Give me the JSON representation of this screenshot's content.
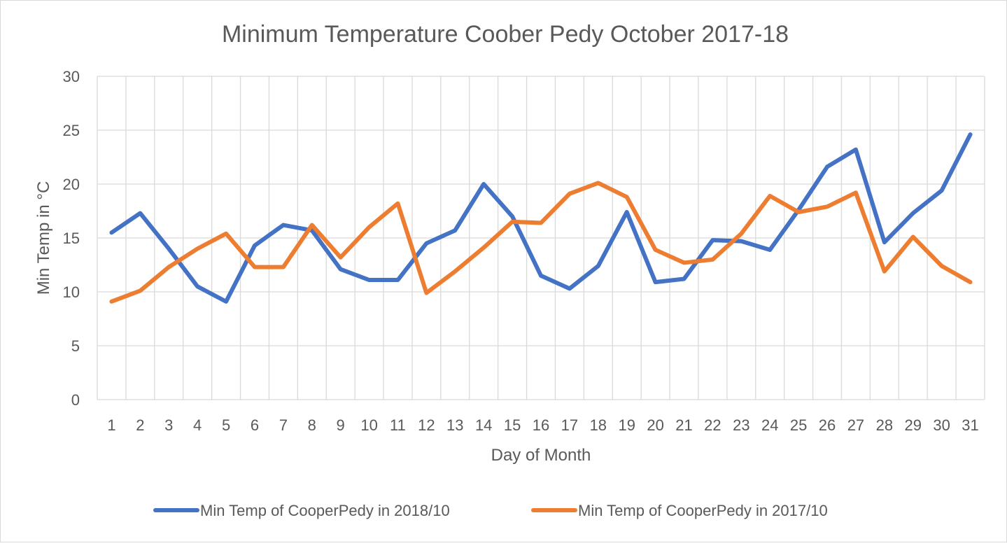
{
  "chart_data": {
    "type": "line",
    "title": "Minimum Temperature Coober Pedy October 2017-18",
    "xlabel": "Day of Month",
    "ylabel": "Min Temp in °C",
    "ylim": [
      0,
      30
    ],
    "yticks": [
      0,
      5,
      10,
      15,
      20,
      25,
      30
    ],
    "grid": true,
    "legend_position": "bottom",
    "categories": [
      "1",
      "2",
      "3",
      "4",
      "5",
      "6",
      "7",
      "8",
      "9",
      "10",
      "11",
      "12",
      "13",
      "14",
      "15",
      "16",
      "17",
      "18",
      "19",
      "20",
      "21",
      "22",
      "23",
      "24",
      "25",
      "26",
      "27",
      "28",
      "29",
      "30",
      "31"
    ],
    "series": [
      {
        "name": "Min Temp of CooperPedy in 2018/10",
        "color": "#4472c4",
        "values": [
          15.5,
          17.3,
          14.0,
          10.5,
          9.1,
          14.3,
          16.2,
          15.7,
          12.1,
          11.1,
          11.1,
          14.5,
          15.7,
          20.0,
          17.0,
          11.5,
          10.3,
          12.4,
          17.4,
          10.9,
          11.2,
          14.8,
          14.7,
          13.9,
          17.6,
          21.6,
          23.2,
          14.6,
          17.3,
          19.4,
          24.6
        ]
      },
      {
        "name": "Min Temp of CooperPedy in 2017/10",
        "color": "#ed7d31",
        "values": [
          9.1,
          10.1,
          12.3,
          14.0,
          15.4,
          12.3,
          12.3,
          16.2,
          13.2,
          16.0,
          18.2,
          9.9,
          11.9,
          14.1,
          16.5,
          16.4,
          19.1,
          20.1,
          18.8,
          13.9,
          12.7,
          13.0,
          15.4,
          18.9,
          17.4,
          17.9,
          19.2,
          11.9,
          15.1,
          12.4,
          10.9
        ]
      }
    ]
  }
}
